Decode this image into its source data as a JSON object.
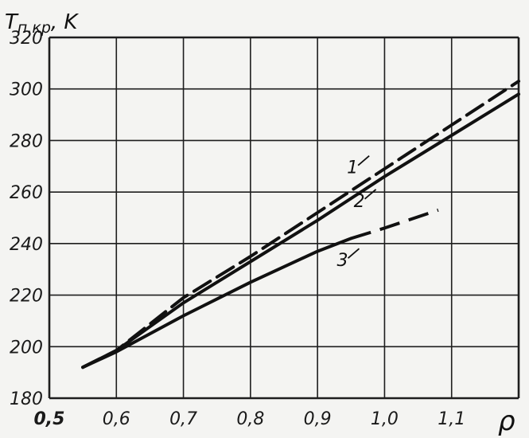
{
  "chart_data": {
    "type": "line",
    "ylabel_main": "T",
    "ylabel_sub": "п.кр",
    "ylabel_unit": ", K",
    "xlabel": "ρ",
    "xlim": [
      0.5,
      1.2
    ],
    "ylim": [
      180,
      320
    ],
    "x_ticks": [
      {
        "value": 0.5,
        "label": "0,5"
      },
      {
        "value": 0.6,
        "label": "0,6"
      },
      {
        "value": 0.7,
        "label": "0,7"
      },
      {
        "value": 0.8,
        "label": "0,8"
      },
      {
        "value": 0.9,
        "label": "0,9"
      },
      {
        "value": 1.0,
        "label": "1,0"
      },
      {
        "value": 1.1,
        "label": "1,1"
      }
    ],
    "y_ticks": [
      {
        "value": 180,
        "label": "180"
      },
      {
        "value": 200,
        "label": "200"
      },
      {
        "value": 220,
        "label": "220"
      },
      {
        "value": 240,
        "label": "240"
      },
      {
        "value": 260,
        "label": "260"
      },
      {
        "value": 280,
        "label": "280"
      },
      {
        "value": 300,
        "label": "300"
      },
      {
        "value": 320,
        "label": "320"
      }
    ],
    "grid": true,
    "series": [
      {
        "label": "1",
        "style": "dashed",
        "points": [
          [
            0.55,
            192
          ],
          [
            0.6,
            198.5
          ],
          [
            0.7,
            219
          ],
          [
            0.8,
            235
          ],
          [
            0.9,
            252
          ],
          [
            1.0,
            269
          ],
          [
            1.1,
            286
          ],
          [
            1.2,
            303
          ]
        ],
        "label_at": [
          0.97,
          266
        ]
      },
      {
        "label": "2",
        "style": "solid",
        "points": [
          [
            0.55,
            192
          ],
          [
            0.6,
            198.5
          ],
          [
            0.7,
            217
          ],
          [
            0.8,
            233
          ],
          [
            0.9,
            249
          ],
          [
            1.0,
            266
          ],
          [
            1.1,
            282
          ],
          [
            1.2,
            298
          ]
        ],
        "label_at": [
          0.98,
          253
        ]
      },
      {
        "label": "3",
        "style": "solid-then-dashed",
        "points": [
          [
            0.55,
            192
          ],
          [
            0.6,
            198
          ],
          [
            0.7,
            212
          ],
          [
            0.8,
            225
          ],
          [
            0.9,
            237
          ],
          [
            0.95,
            242
          ]
        ],
        "dashed_points": [
          [
            0.95,
            242
          ],
          [
            1.0,
            246
          ],
          [
            1.08,
            253
          ]
        ],
        "label_at": [
          0.955,
          230
        ]
      }
    ],
    "colors": {
      "line": "#111111",
      "grid": "#1e1e1e",
      "background": "#f4f4f2"
    }
  }
}
